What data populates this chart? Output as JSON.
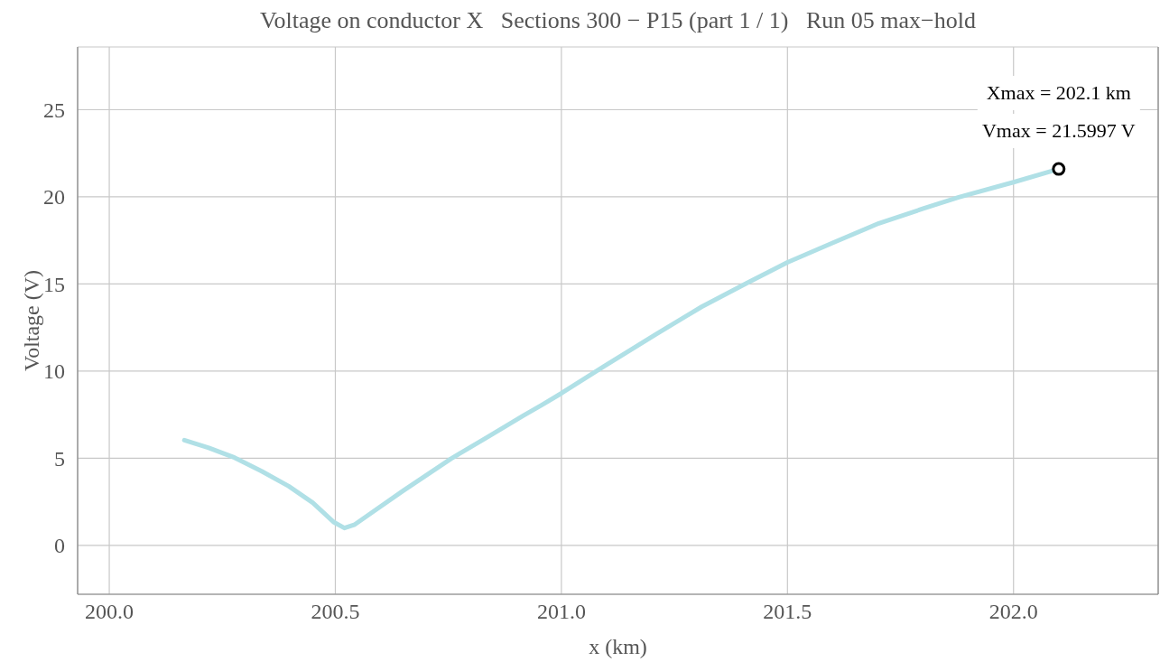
{
  "chart_data": {
    "type": "line",
    "title": "Voltage on conductor X   Sections 300 − P15 (part 1 / 1)   Run 05 max−hold",
    "xlabel": "x (km)",
    "ylabel": "Voltage (V)",
    "xlim": [
      199.93,
      202.32
    ],
    "ylim": [
      -2.8,
      28.6
    ],
    "xticks": [
      {
        "value": 200,
        "label": "200.0"
      },
      200.5,
      {
        "value": 201,
        "label": "201.0"
      },
      201.5,
      {
        "value": 202,
        "label": "202.0"
      }
    ],
    "yticks": [
      0,
      5,
      10,
      15,
      20,
      25
    ],
    "grid": true,
    "line_style": "solid",
    "series": [
      {
        "color": "#b0e0e6",
        "marker": "none",
        "x": [
          200.166,
          200.22,
          200.277,
          200.337,
          200.397,
          200.45,
          200.497,
          200.52,
          200.543,
          200.583,
          200.65,
          200.756,
          200.836,
          200.916,
          200.956,
          201.0,
          201.095,
          201.21,
          201.31,
          201.41,
          201.5,
          201.602,
          201.702,
          201.802,
          201.879,
          202.0,
          202.1
        ],
        "values": [
          6.04,
          5.6,
          5.04,
          4.26,
          3.4,
          2.45,
          1.33,
          1.0,
          1.2,
          1.93,
          3.14,
          4.98,
          6.21,
          7.45,
          8.05,
          8.73,
          10.29,
          12.13,
          13.69,
          15.05,
          16.24,
          17.38,
          18.48,
          19.34,
          19.98,
          20.84,
          21.5997
        ]
      },
      {
        "type": "scatter",
        "color": "#000000",
        "marker": "circle",
        "x": [
          202.1
        ],
        "values": [
          21.5997
        ]
      }
    ],
    "annotations": [
      "Xmax = 202.1 km",
      {
        "text": "Vmax = 21.5997 V",
        "x": 202.1,
        "y": 21.5997
      }
    ]
  }
}
